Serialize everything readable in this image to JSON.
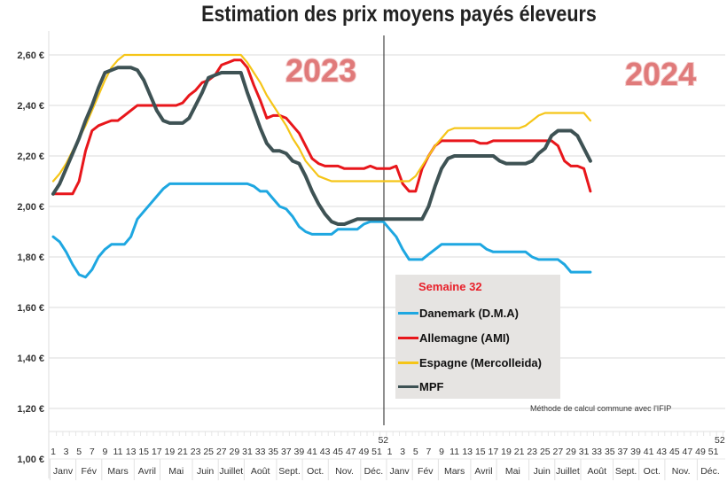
{
  "chart_data": {
    "type": "line",
    "title": "Estimation des prix moyens payés éleveurs",
    "xlabel": "",
    "ylabel": "",
    "ylim": [
      1.0,
      2.6
    ],
    "y_ticks": [
      "1,00 €",
      "1,20 €",
      "1,40 €",
      "1,60 €",
      "1,80 €",
      "2,00 €",
      "2,20 €",
      "2,40 €",
      "2,60 €"
    ],
    "y_tick_values": [
      1.0,
      1.2,
      1.4,
      1.6,
      1.8,
      2.0,
      2.2,
      2.4,
      2.6
    ],
    "grid": true,
    "years": [
      "2023",
      "2024"
    ],
    "week_ticks": [
      "1",
      "3",
      "5",
      "7",
      "9",
      "11",
      "13",
      "15",
      "17",
      "19",
      "21",
      "23",
      "25",
      "27",
      "29",
      "31",
      "33",
      "35",
      "37",
      "39",
      "41",
      "43",
      "45",
      "47",
      "49",
      "51",
      "52"
    ],
    "months": [
      "Janv",
      "Fév",
      "Mars",
      "Avril",
      "Mai",
      "Juin",
      "Juillet",
      "Août",
      "Sept.",
      "Oct.",
      "Nov.",
      "Déc."
    ],
    "legend_title": "Semaine 32",
    "legend_position": "bottom-center",
    "series": [
      {
        "name": "Danemark (D.M.A)",
        "color": "#1ea7e1",
        "values_2023": [
          1.88,
          1.86,
          1.82,
          1.77,
          1.73,
          1.72,
          1.75,
          1.8,
          1.83,
          1.85,
          1.85,
          1.85,
          1.88,
          1.95,
          1.98,
          2.01,
          2.04,
          2.07,
          2.09,
          2.09,
          2.09,
          2.09,
          2.09,
          2.09,
          2.09,
          2.09,
          2.09,
          2.09,
          2.09,
          2.09,
          2.09,
          2.08,
          2.06,
          2.06,
          2.03,
          2.0,
          1.99,
          1.96,
          1.92,
          1.9,
          1.89,
          1.89,
          1.89,
          1.89,
          1.91,
          1.91,
          1.91,
          1.91,
          1.93,
          1.94,
          1.94,
          1.94
        ],
        "values_2024": [
          1.91,
          1.88,
          1.83,
          1.79,
          1.79,
          1.79,
          1.81,
          1.83,
          1.85,
          1.85,
          1.85,
          1.85,
          1.85,
          1.85,
          1.85,
          1.83,
          1.82,
          1.82,
          1.82,
          1.82,
          1.82,
          1.82,
          1.8,
          1.79,
          1.79,
          1.79,
          1.79,
          1.77,
          1.74,
          1.74,
          1.74,
          1.74
        ]
      },
      {
        "name": "Allemagne (AMI)",
        "color": "#e8161b",
        "values_2023": [
          2.05,
          2.05,
          2.05,
          2.05,
          2.1,
          2.22,
          2.3,
          2.32,
          2.33,
          2.34,
          2.34,
          2.36,
          2.38,
          2.4,
          2.4,
          2.4,
          2.4,
          2.4,
          2.4,
          2.4,
          2.41,
          2.44,
          2.46,
          2.49,
          2.5,
          2.52,
          2.56,
          2.57,
          2.58,
          2.58,
          2.55,
          2.48,
          2.42,
          2.35,
          2.36,
          2.36,
          2.35,
          2.32,
          2.29,
          2.24,
          2.19,
          2.17,
          2.16,
          2.16,
          2.16,
          2.15,
          2.15,
          2.15,
          2.15,
          2.16,
          2.15,
          2.15
        ],
        "values_2024": [
          2.15,
          2.16,
          2.09,
          2.06,
          2.06,
          2.15,
          2.2,
          2.24,
          2.26,
          2.26,
          2.26,
          2.26,
          2.26,
          2.26,
          2.25,
          2.25,
          2.26,
          2.26,
          2.26,
          2.26,
          2.26,
          2.26,
          2.26,
          2.26,
          2.26,
          2.26,
          2.24,
          2.18,
          2.16,
          2.16,
          2.15,
          2.06
        ]
      },
      {
        "name": "Espagne (Mercolleida)",
        "color": "#f5c518",
        "values_2023": [
          2.1,
          2.13,
          2.17,
          2.22,
          2.27,
          2.32,
          2.38,
          2.44,
          2.5,
          2.55,
          2.58,
          2.6,
          2.6,
          2.6,
          2.6,
          2.6,
          2.6,
          2.6,
          2.6,
          2.6,
          2.6,
          2.6,
          2.6,
          2.6,
          2.6,
          2.6,
          2.6,
          2.6,
          2.6,
          2.6,
          2.57,
          2.53,
          2.49,
          2.44,
          2.4,
          2.36,
          2.32,
          2.27,
          2.23,
          2.18,
          2.15,
          2.12,
          2.11,
          2.1,
          2.1,
          2.1,
          2.1,
          2.1,
          2.1,
          2.1,
          2.1,
          2.1
        ],
        "values_2024": [
          2.1,
          2.1,
          2.1,
          2.1,
          2.12,
          2.16,
          2.2,
          2.24,
          2.27,
          2.3,
          2.31,
          2.31,
          2.31,
          2.31,
          2.31,
          2.31,
          2.31,
          2.31,
          2.31,
          2.31,
          2.31,
          2.32,
          2.34,
          2.36,
          2.37,
          2.37,
          2.37,
          2.37,
          2.37,
          2.37,
          2.37,
          2.34
        ]
      },
      {
        "name": "MPF",
        "color": "#3e5254",
        "values_2023": [
          2.05,
          2.09,
          2.15,
          2.21,
          2.27,
          2.34,
          2.4,
          2.47,
          2.53,
          2.54,
          2.55,
          2.55,
          2.55,
          2.54,
          2.5,
          2.44,
          2.38,
          2.34,
          2.33,
          2.33,
          2.33,
          2.35,
          2.4,
          2.45,
          2.51,
          2.52,
          2.53,
          2.53,
          2.53,
          2.53,
          2.45,
          2.38,
          2.31,
          2.25,
          2.22,
          2.22,
          2.21,
          2.18,
          2.17,
          2.12,
          2.06,
          2.01,
          1.97,
          1.94,
          1.93,
          1.93,
          1.94,
          1.95,
          1.95,
          1.95,
          1.95,
          1.95
        ],
        "values_2024": [
          1.95,
          1.95,
          1.95,
          1.95,
          1.95,
          1.95,
          2.0,
          2.08,
          2.15,
          2.19,
          2.2,
          2.2,
          2.2,
          2.2,
          2.2,
          2.2,
          2.2,
          2.18,
          2.17,
          2.17,
          2.17,
          2.17,
          2.18,
          2.21,
          2.23,
          2.28,
          2.3,
          2.3,
          2.3,
          2.28,
          2.23,
          2.18
        ]
      }
    ],
    "footnote": "Méthode de calcul commune avec l'IFIP"
  }
}
